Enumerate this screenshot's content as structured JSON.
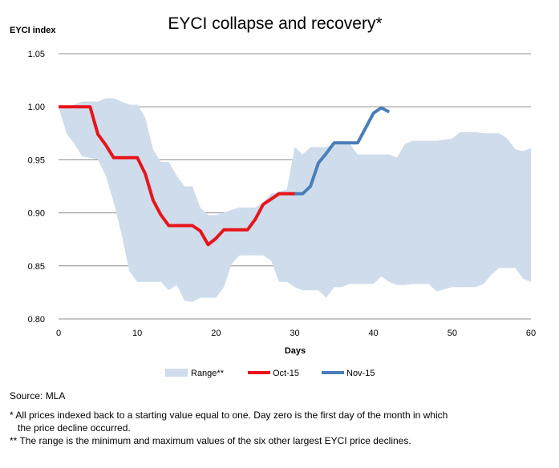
{
  "chart_data": {
    "type": "line",
    "title": "EYCI collapse and recovery*",
    "xlabel": "Days",
    "ylabel": "EYCI index",
    "xlim": [
      0,
      60
    ],
    "ylim": [
      0.8,
      1.05
    ],
    "x_ticks": [
      "0",
      "10",
      "20",
      "30",
      "40",
      "50",
      "60"
    ],
    "y_ticks": [
      "0.80",
      "0.85",
      "0.90",
      "0.95",
      "1.00",
      "1.05"
    ],
    "grid": "horizontal",
    "legend_position": "bottom",
    "colors": {
      "range": "#cfdceb",
      "oct": "#e8141b",
      "nov": "#4a7ebb",
      "grid": "#8c8c8c"
    },
    "range": {
      "name": "Range**",
      "x": [
        0,
        1,
        2,
        3,
        4,
        5,
        6,
        7,
        8,
        9,
        10,
        11,
        12,
        13,
        14,
        15,
        16,
        17,
        18,
        19,
        20,
        21,
        22,
        23,
        24,
        25,
        26,
        27,
        28,
        29,
        30,
        31,
        32,
        33,
        34,
        35,
        36,
        37,
        38,
        39,
        40,
        41,
        42,
        43,
        44,
        45,
        46,
        47,
        48,
        49,
        50,
        51,
        52,
        53,
        54,
        55,
        56,
        57,
        58,
        59,
        60
      ],
      "upper": [
        1.0,
        1.0,
        1.002,
        1.005,
        1.005,
        1.005,
        1.008,
        1.008,
        1.005,
        1.002,
        1.002,
        0.99,
        0.96,
        0.948,
        0.948,
        0.935,
        0.925,
        0.925,
        0.905,
        0.898,
        0.898,
        0.9,
        0.903,
        0.905,
        0.905,
        0.905,
        0.91,
        0.918,
        0.92,
        0.922,
        0.962,
        0.955,
        0.962,
        0.962,
        0.962,
        0.965,
        0.968,
        0.965,
        0.955,
        0.955,
        0.955,
        0.955,
        0.955,
        0.952,
        0.965,
        0.968,
        0.968,
        0.968,
        0.968,
        0.969,
        0.97,
        0.976,
        0.976,
        0.976,
        0.975,
        0.975,
        0.975,
        0.97,
        0.96,
        0.958,
        0.961
      ],
      "lower": [
        1.0,
        0.975,
        0.965,
        0.953,
        0.952,
        0.95,
        0.935,
        0.91,
        0.88,
        0.845,
        0.835,
        0.835,
        0.835,
        0.835,
        0.827,
        0.832,
        0.817,
        0.816,
        0.82,
        0.82,
        0.82,
        0.83,
        0.852,
        0.86,
        0.86,
        0.86,
        0.86,
        0.855,
        0.835,
        0.835,
        0.83,
        0.827,
        0.827,
        0.827,
        0.82,
        0.83,
        0.83,
        0.833,
        0.833,
        0.833,
        0.833,
        0.84,
        0.835,
        0.832,
        0.832,
        0.833,
        0.833,
        0.833,
        0.826,
        0.828,
        0.83,
        0.83,
        0.83,
        0.83,
        0.833,
        0.842,
        0.848,
        0.848,
        0.848,
        0.838,
        0.835
      ]
    },
    "series": [
      {
        "name": "Oct-15",
        "x": [
          0,
          1,
          2,
          3,
          4,
          5,
          6,
          7,
          8,
          9,
          10,
          11,
          12,
          13,
          14,
          15,
          16,
          17,
          18,
          19,
          20,
          21,
          22,
          23,
          24,
          25,
          26,
          27,
          28,
          29,
          30
        ],
        "values": [
          1.0,
          1.0,
          1.0,
          1.0,
          1.0,
          0.974,
          0.964,
          0.952,
          0.952,
          0.952,
          0.952,
          0.937,
          0.912,
          0.898,
          0.888,
          0.888,
          0.888,
          0.888,
          0.883,
          0.87,
          0.876,
          0.884,
          0.884,
          0.884,
          0.884,
          0.894,
          0.908,
          0.913,
          0.918,
          0.918,
          0.918
        ]
      },
      {
        "name": "Nov-15",
        "x": [
          30,
          31,
          32,
          33,
          34,
          35,
          36,
          37,
          38,
          39,
          40,
          41,
          42
        ],
        "values": [
          0.918,
          0.918,
          0.925,
          0.947,
          0.956,
          0.966,
          0.966,
          0.966,
          0.966,
          0.98,
          0.994,
          0.999,
          0.995
        ]
      }
    ]
  },
  "notes": {
    "source": "Source: MLA",
    "footnote1_line1": "* All prices indexed back to a starting value equal to one. Day zero is the first day of the month in which",
    "footnote1_line2": "the price decline occurred.",
    "footnote2": "** The range is the minimum and maximum values of the six other largest EYCI price declines."
  }
}
